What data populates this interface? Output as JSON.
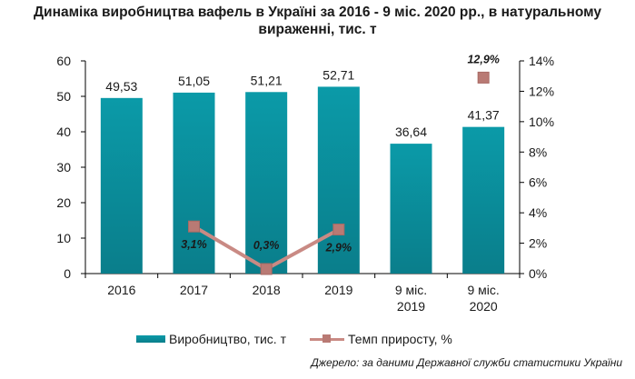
{
  "title_lines": [
    "Динаміка виробництва вафель в Україні за 2016 - 9 міс. 2020 рр., в натуральному",
    "вираженні, тис. т"
  ],
  "source": "Джерело: за даними Державної служби статистики України",
  "colors": {
    "bar": "#0b9aa8",
    "line": "#c98a84",
    "marker": "#b97a74",
    "axis": "#000000"
  },
  "chart_data": {
    "type": "bar",
    "categories": [
      [
        "2016"
      ],
      [
        "2017"
      ],
      [
        "2018"
      ],
      [
        "2019"
      ],
      [
        "9 міс.",
        "2019"
      ],
      [
        "9 міс.",
        "2020"
      ]
    ],
    "series": [
      {
        "name": "Виробництво, тис. т",
        "type": "bar",
        "axis": "left",
        "values": [
          49.53,
          51.05,
          51.21,
          52.71,
          36.64,
          41.37
        ],
        "labels": [
          "49,53",
          "51,05",
          "51,21",
          "52,71",
          "36,64",
          "41,37"
        ]
      },
      {
        "name": "Темп приросту, %",
        "type": "line",
        "axis": "right",
        "segments": [
          [
            1,
            2,
            3
          ],
          [
            5
          ]
        ],
        "values": [
          null,
          3.1,
          0.3,
          2.9,
          null,
          12.9
        ],
        "labels": [
          null,
          "3,1%",
          "0,3%",
          "2,9%",
          null,
          "12,9%"
        ]
      }
    ],
    "y_left": {
      "lim": [
        0,
        60
      ],
      "ticks": [
        "0",
        "10",
        "20",
        "30",
        "40",
        "50",
        "60"
      ]
    },
    "y_right": {
      "lim": [
        0,
        14
      ],
      "ticks": [
        "0%",
        "2%",
        "4%",
        "6%",
        "8%",
        "10%",
        "12%",
        "14%"
      ]
    },
    "grid": false,
    "legend": "bottom"
  }
}
